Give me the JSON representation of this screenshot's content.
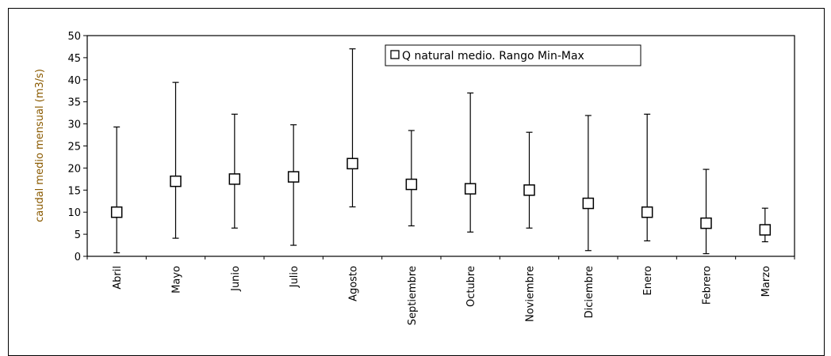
{
  "chart_data": {
    "type": "scatter",
    "ylabel": "caudal medio mensual (m3/s)",
    "ylim": [
      0,
      50
    ],
    "yticks": [
      0,
      5,
      10,
      15,
      20,
      25,
      30,
      35,
      40,
      45,
      50
    ],
    "grid": false,
    "legend": {
      "position": "top-center",
      "label": "Q natural medio. Rango Min-Max"
    },
    "categories": [
      "Abril",
      "Mayo",
      "Junio",
      "Julio",
      "Agosto",
      "Septiembre",
      "Octubre",
      "Noviembre",
      "Diciembre",
      "Enero",
      "Febrero",
      "Marzo"
    ],
    "series": [
      {
        "name": "Q natural medio. Rango Min-Max",
        "values": [
          10.0,
          17.0,
          17.5,
          18.0,
          21.0,
          16.3,
          15.3,
          15.0,
          12.0,
          10.0,
          7.5,
          6.0
        ],
        "min": [
          0.8,
          4.1,
          6.4,
          2.5,
          11.2,
          6.9,
          5.5,
          6.4,
          1.3,
          3.5,
          0.6,
          3.3
        ],
        "max": [
          29.3,
          39.4,
          32.2,
          29.8,
          47.0,
          28.5,
          37.0,
          28.1,
          31.9,
          32.2,
          19.7,
          10.9
        ]
      }
    ]
  }
}
